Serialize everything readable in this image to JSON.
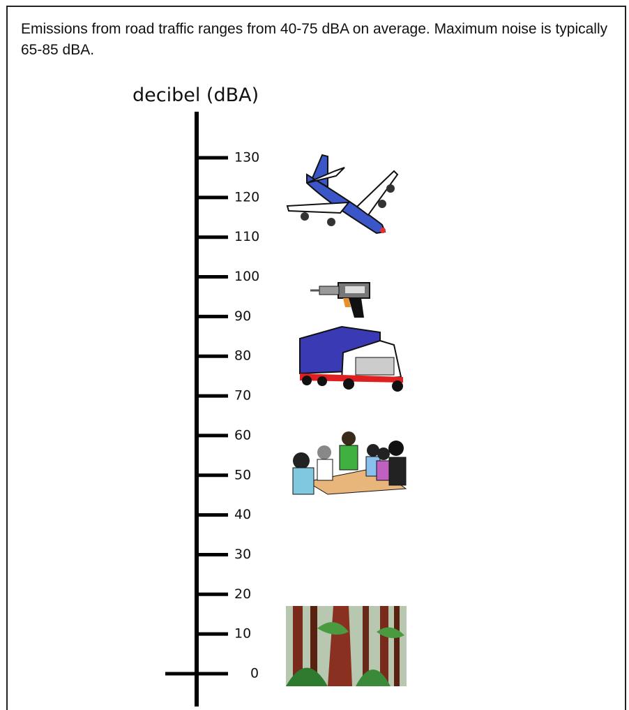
{
  "caption": "Emissions from road traffic ranges from 40-75 dBA on average. Maximum noise is typically 65-85 dBA.",
  "scale": {
    "label": "decibel  (dBA)",
    "ticks": [
      130,
      120,
      110,
      100,
      90,
      80,
      70,
      60,
      50,
      40,
      30,
      20,
      10,
      0
    ]
  }
}
